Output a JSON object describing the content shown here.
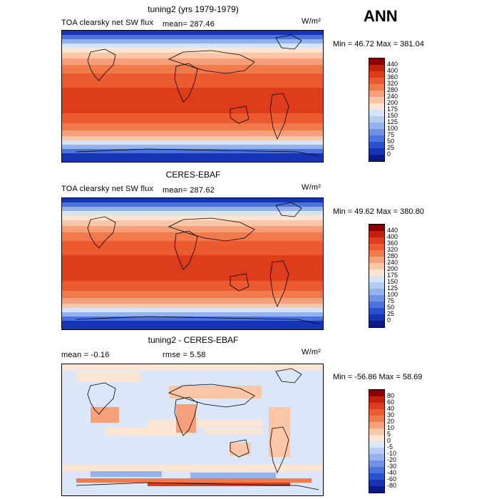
{
  "season": "ANN",
  "units": "W/m²",
  "panels": [
    {
      "title": "tuning2 (yrs 1979-1979)",
      "field_label": "TOA clearsky net SW flux",
      "stat_text": "mean=  287.46",
      "min_max": "Min =  46.72 Max = 381.04",
      "cb_labels": [
        "440",
        "400",
        "360",
        "320",
        "280",
        "240",
        "200",
        "175",
        "150",
        "125",
        "100",
        "75",
        "50",
        "25",
        "0"
      ],
      "cb_colors": [
        "#8b0000",
        "#c0200c",
        "#dd3d1a",
        "#ec5b2f",
        "#f07a4b",
        "#f5a07a",
        "#f9c6a8",
        "#fde5d4",
        "#d6e4f7",
        "#b6cdf2",
        "#94b2ec",
        "#6f92e4",
        "#4c73dc",
        "#2a52d0",
        "#1634b6",
        "#0a1a8a"
      ]
    },
    {
      "title": "CERES-EBAF",
      "field_label": "TOA clearsky net SW flux",
      "stat_text": "mean=  287.62",
      "min_max": "Min =  49.62 Max = 380.80",
      "cb_labels": [
        "440",
        "400",
        "360",
        "320",
        "280",
        "240",
        "200",
        "175",
        "150",
        "125",
        "100",
        "75",
        "50",
        "25",
        "0"
      ],
      "cb_colors": [
        "#8b0000",
        "#c0200c",
        "#dd3d1a",
        "#ec5b2f",
        "#f07a4b",
        "#f5a07a",
        "#f9c6a8",
        "#fde5d4",
        "#d6e4f7",
        "#b6cdf2",
        "#94b2ec",
        "#6f92e4",
        "#4c73dc",
        "#2a52d0",
        "#1634b6",
        "#0a1a8a"
      ]
    },
    {
      "title": "tuning2 - CERES-EBAF",
      "mean_text": "mean =   -0.16",
      "rmse_text": "rmse =    5.58",
      "min_max": "Min = -56.86 Max =  58.69",
      "cb_labels": [
        "80",
        "60",
        "40",
        "30",
        "20",
        "10",
        "5",
        "0",
        "-5",
        "-10",
        "-20",
        "-30",
        "-40",
        "-60",
        "-80"
      ],
      "cb_colors": [
        "#8b0000",
        "#c0200c",
        "#dd3d1a",
        "#ec5b2f",
        "#f07a4b",
        "#f5a07a",
        "#f9c6a8",
        "#fde5d4",
        "#dbe6f8",
        "#b6cdf2",
        "#94b2ec",
        "#6f92e4",
        "#4c73dc",
        "#2a52d0",
        "#1634b6",
        "#0a1a8a"
      ]
    }
  ]
}
